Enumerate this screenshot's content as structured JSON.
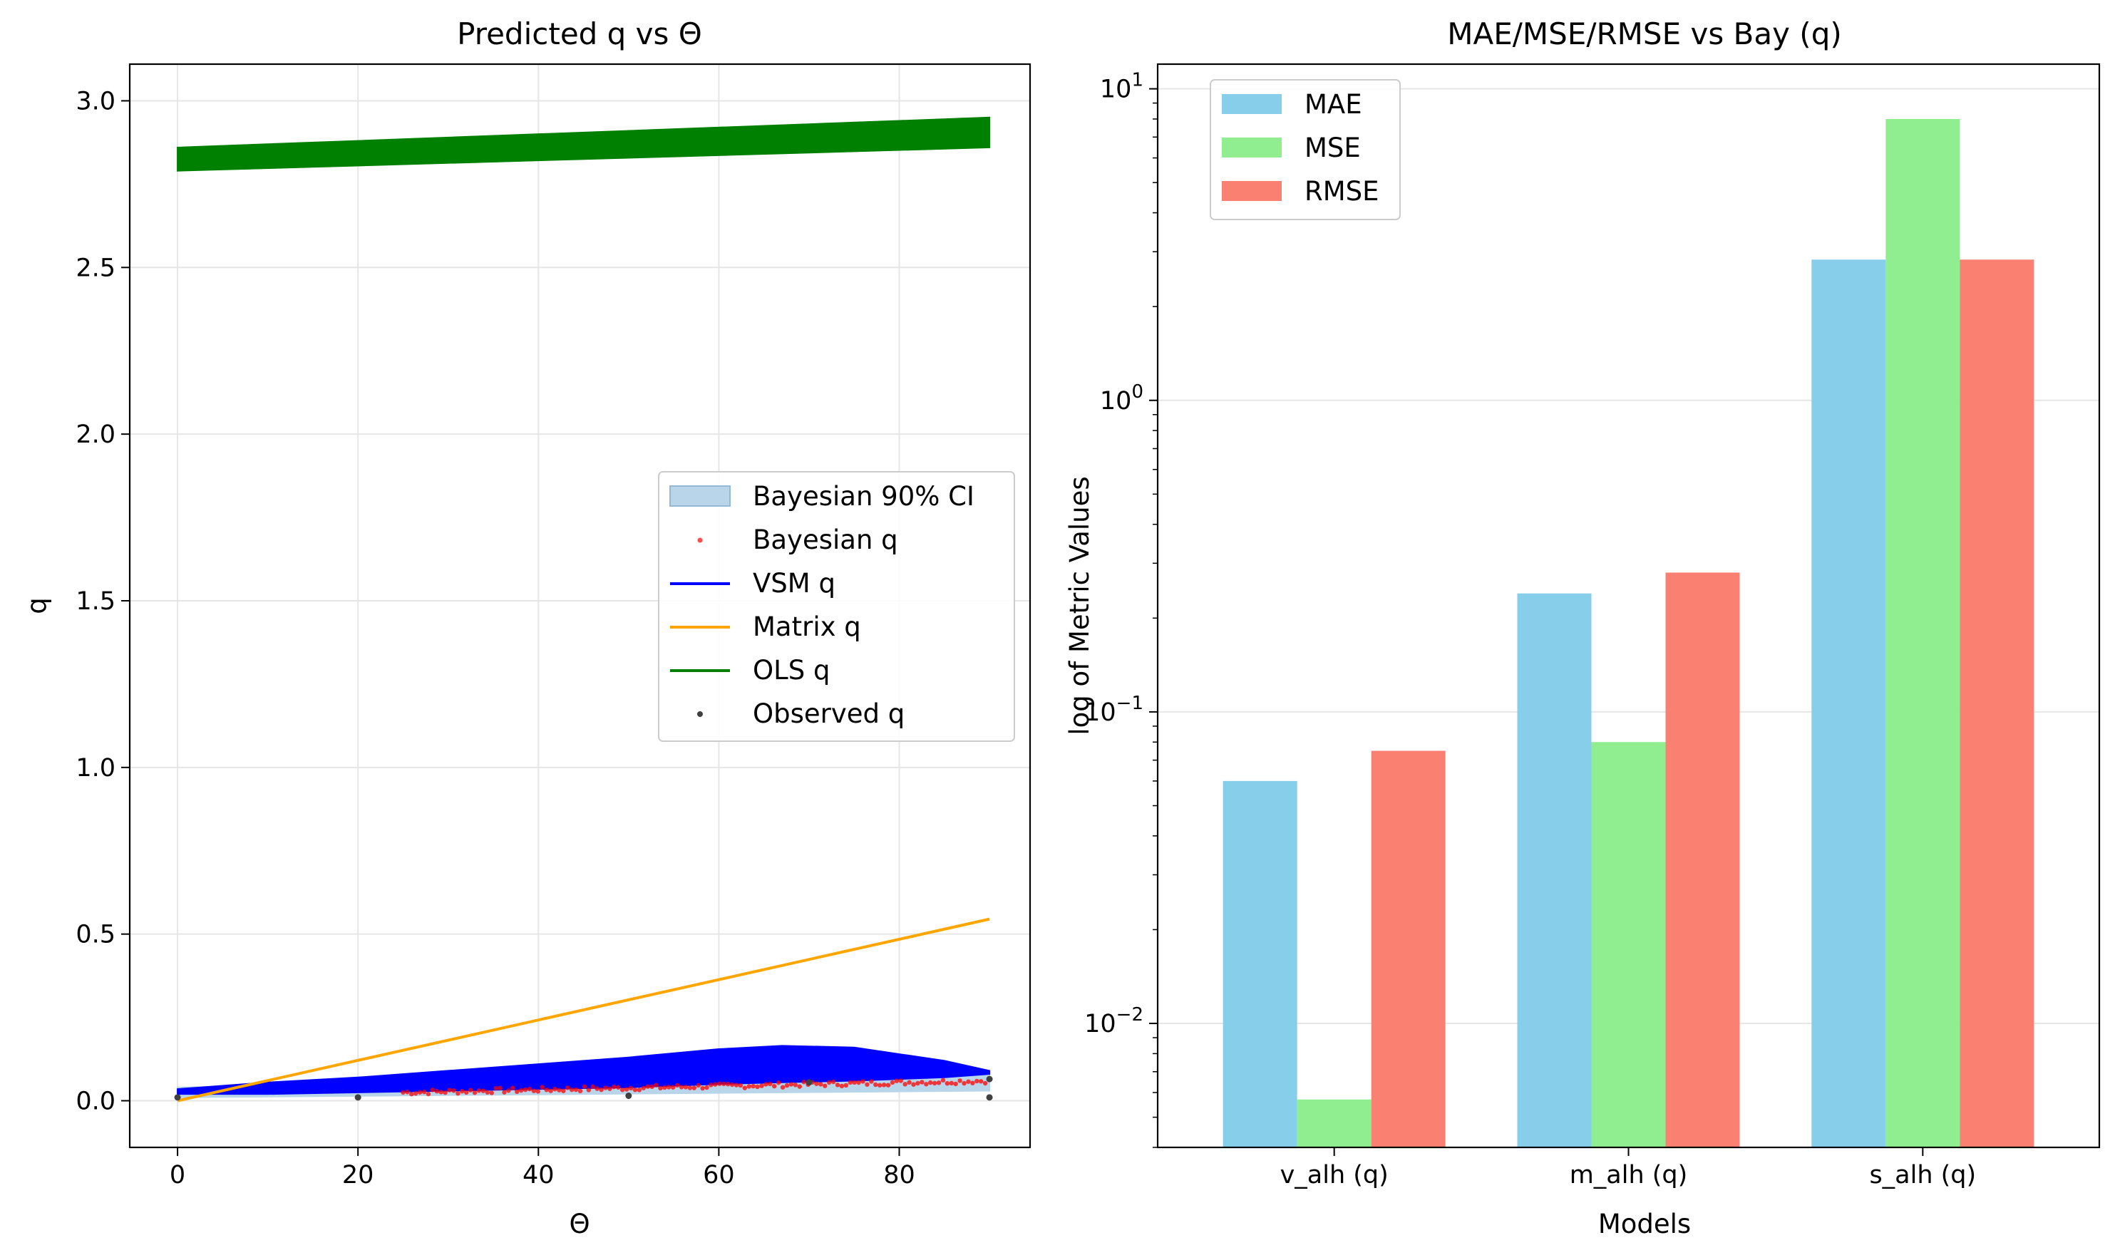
{
  "colors": {
    "vsm": "#0000ff",
    "matrix": "#ffa500",
    "ols": "#008000",
    "bayes_pts": "#ff0000",
    "ci_fill": "#b9d5ea",
    "observed": "#404040",
    "mae": "#87ceeb",
    "mse": "#90ee90",
    "rmse": "#fa8072",
    "grid": "#e6e6e6"
  },
  "chart_data": [
    {
      "type": "line",
      "title": "Predicted q vs Θ",
      "xlabel": "Θ",
      "ylabel": "q",
      "xlim": [
        -5.3,
        94.5
      ],
      "ylim": [
        -0.14,
        3.11
      ],
      "xticks": [
        0,
        20,
        40,
        60,
        80
      ],
      "xtick_labels": [
        "0",
        "20",
        "40",
        "60",
        "80"
      ],
      "yticks": [
        0,
        0.5,
        1,
        1.5,
        2,
        2.5,
        3
      ],
      "ytick_labels": [
        "0.0",
        "0.5",
        "1.0",
        "1.5",
        "2.0",
        "2.5",
        "3.0"
      ],
      "grid": true,
      "legend_position": "center-right",
      "legend": [
        "Bayesian 90% CI",
        "Bayesian q",
        "VSM q",
        "Matrix q",
        "OLS q",
        "Observed q"
      ],
      "series": [
        {
          "name": "OLS q",
          "kind": "band",
          "x": [
            0,
            90
          ],
          "lower": [
            2.79,
            2.86
          ],
          "upper": [
            2.86,
            2.95
          ]
        },
        {
          "name": "Bayesian 90% CI",
          "kind": "band",
          "x": [
            0,
            90
          ],
          "lower": [
            0.01,
            0.03
          ],
          "upper": [
            0.04,
            0.08
          ]
        },
        {
          "name": "VSM q",
          "kind": "band",
          "x": [
            0,
            10,
            20,
            30,
            40,
            50,
            60,
            67,
            75,
            85,
            90
          ],
          "lower": [
            0.02,
            0.02,
            0.025,
            0.03,
            0.035,
            0.04,
            0.05,
            0.055,
            0.06,
            0.07,
            0.08
          ],
          "upper": [
            0.035,
            0.055,
            0.07,
            0.09,
            0.11,
            0.13,
            0.155,
            0.165,
            0.16,
            0.12,
            0.09
          ]
        },
        {
          "name": "Matrix q",
          "kind": "line",
          "x": [
            0,
            90
          ],
          "y": [
            0.0,
            0.545
          ]
        },
        {
          "name": "Bayesian q",
          "kind": "points",
          "x_range": [
            25,
            90
          ],
          "y_range": [
            0.025,
            0.06
          ]
        },
        {
          "name": "Observed q",
          "kind": "points",
          "x": [
            0,
            20,
            50,
            70,
            90,
            90
          ],
          "y": [
            0.01,
            0.01,
            0.015,
            0.055,
            0.065,
            0.01
          ]
        }
      ]
    },
    {
      "type": "bar",
      "title": "MAE/MSE/RMSE vs Bay (q)",
      "xlabel": "Models",
      "ylabel": "log of Metric Values",
      "yscale": "log",
      "ylim": [
        0.004,
        12
      ],
      "yticks": [
        0.01,
        0.1,
        1,
        10
      ],
      "ytick_labels": [
        {
          "base": "10",
          "exp": "−2"
        },
        {
          "base": "10",
          "exp": "−1"
        },
        {
          "base": "10",
          "exp": "0"
        },
        {
          "base": "10",
          "exp": "1"
        }
      ],
      "grid": true,
      "legend_position": "top-left",
      "categories": [
        "v_alh (q)",
        "m_alh (q)",
        "s_alh (q)"
      ],
      "series": [
        {
          "name": "MAE",
          "values": [
            0.06,
            0.24,
            2.83
          ]
        },
        {
          "name": "MSE",
          "values": [
            0.0057,
            0.08,
            8.0
          ]
        },
        {
          "name": "RMSE",
          "values": [
            0.075,
            0.28,
            2.83
          ]
        }
      ]
    }
  ]
}
